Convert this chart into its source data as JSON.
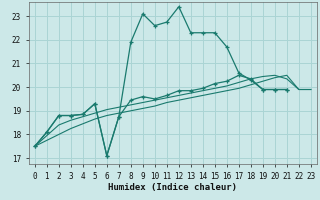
{
  "xlabel": "Humidex (Indice chaleur)",
  "background_color": "#cce8e8",
  "grid_color": "#aad4d4",
  "line_color": "#1a7a6e",
  "xlim": [
    -0.5,
    23.5
  ],
  "ylim": [
    16.75,
    23.6
  ],
  "xticks": [
    0,
    1,
    2,
    3,
    4,
    5,
    6,
    7,
    8,
    9,
    10,
    11,
    12,
    13,
    14,
    15,
    16,
    17,
    18,
    19,
    20,
    21,
    22,
    23
  ],
  "yticks": [
    17,
    18,
    19,
    20,
    21,
    22,
    23
  ],
  "series0_x": [
    0,
    1,
    2,
    3,
    4,
    5,
    6,
    7,
    8,
    9,
    10,
    11,
    12,
    13,
    14,
    15,
    16,
    17,
    18,
    19,
    20,
    21
  ],
  "series0_y": [
    17.5,
    18.1,
    18.8,
    18.8,
    18.85,
    19.3,
    17.1,
    18.75,
    21.9,
    23.1,
    22.6,
    22.75,
    23.4,
    22.3,
    22.3,
    22.3,
    21.7,
    20.6,
    20.3,
    19.9,
    19.9,
    19.9
  ],
  "series1_x": [
    0,
    1,
    2,
    3,
    4,
    5,
    6,
    7,
    8,
    9,
    10,
    11,
    12,
    13,
    14,
    15,
    16,
    17,
    18,
    19,
    20,
    21
  ],
  "series1_y": [
    17.5,
    18.1,
    18.8,
    18.8,
    18.85,
    19.3,
    17.1,
    18.75,
    19.45,
    19.6,
    19.5,
    19.65,
    19.85,
    19.85,
    19.95,
    20.15,
    20.25,
    20.5,
    20.35,
    19.9,
    19.9,
    19.9
  ],
  "series2_x": [
    0,
    1,
    2,
    3,
    4,
    5,
    6,
    7,
    8,
    9,
    10,
    11,
    12,
    13,
    14,
    15,
    16,
    17,
    18,
    19,
    20,
    21,
    22,
    23
  ],
  "series2_y": [
    17.5,
    17.95,
    18.4,
    18.6,
    18.75,
    18.9,
    19.05,
    19.15,
    19.25,
    19.35,
    19.45,
    19.55,
    19.65,
    19.75,
    19.85,
    19.95,
    20.05,
    20.2,
    20.35,
    20.45,
    20.5,
    20.35,
    19.9,
    19.9
  ],
  "series3_x": [
    0,
    1,
    2,
    3,
    4,
    5,
    6,
    7,
    8,
    9,
    10,
    11,
    12,
    13,
    14,
    15,
    16,
    17,
    18,
    19,
    20,
    21,
    22,
    23
  ],
  "series3_y": [
    17.5,
    17.75,
    18.0,
    18.25,
    18.45,
    18.65,
    18.8,
    18.9,
    19.0,
    19.1,
    19.2,
    19.35,
    19.45,
    19.55,
    19.65,
    19.75,
    19.85,
    19.95,
    20.1,
    20.25,
    20.4,
    20.5,
    19.9,
    19.9
  ]
}
